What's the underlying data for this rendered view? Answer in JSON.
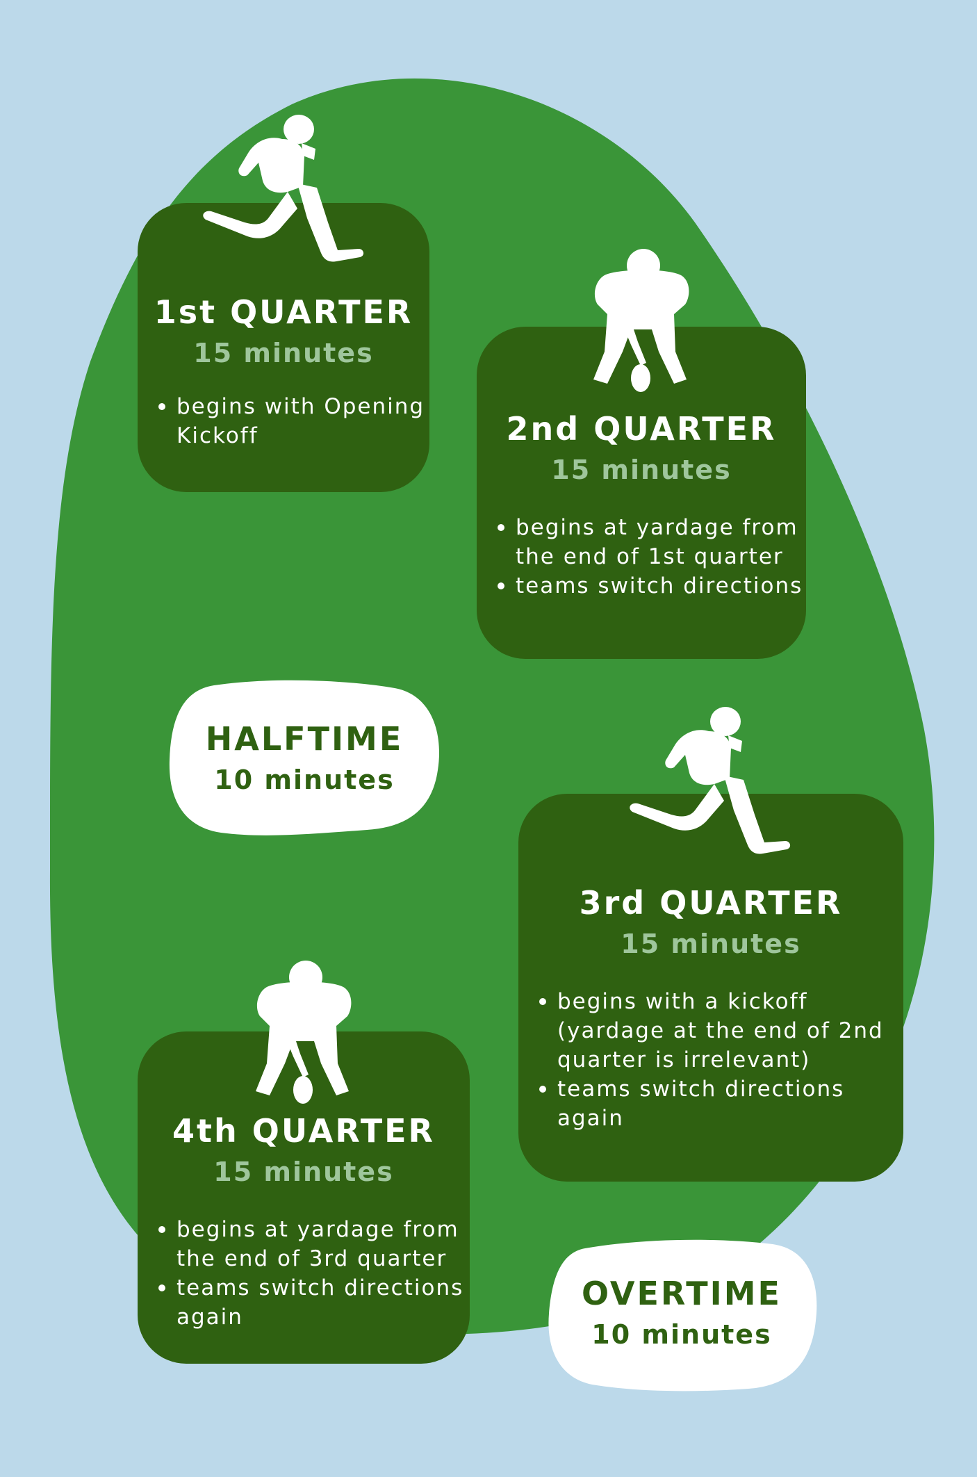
{
  "colors": {
    "background": "#bcd9ea",
    "field": "#3a9538",
    "card": "#2f6111",
    "duration_light": "#9fc69c",
    "white": "#ffffff"
  },
  "quarters": [
    {
      "title": "1st QUARTER",
      "duration": "15 minutes",
      "bullets": [
        "begins with Opening Kickoff"
      ],
      "icon": "kicker-silhouette-icon"
    },
    {
      "title": "2nd QUARTER",
      "duration": "15 minutes",
      "bullets": [
        "begins at yardage from the end of 1st quarter",
        "teams switch directions"
      ],
      "icon": "center-snapper-silhouette-icon"
    },
    {
      "title": "3rd QUARTER",
      "duration": "15 minutes",
      "bullets": [
        "begins with a kickoff (yardage at the end of 2nd quarter is irrelevant)",
        "teams switch directions again"
      ],
      "icon": "kicker-silhouette-icon"
    },
    {
      "title": "4th QUARTER",
      "duration": "15 minutes",
      "bullets": [
        "begins at yardage from the end of 3rd quarter",
        "teams switch directions again"
      ],
      "icon": "center-snapper-silhouette-icon"
    }
  ],
  "halftime": {
    "title": "HALFTIME",
    "duration": "10 minutes"
  },
  "overtime": {
    "title": "OVERTIME",
    "duration": "10 minutes"
  }
}
